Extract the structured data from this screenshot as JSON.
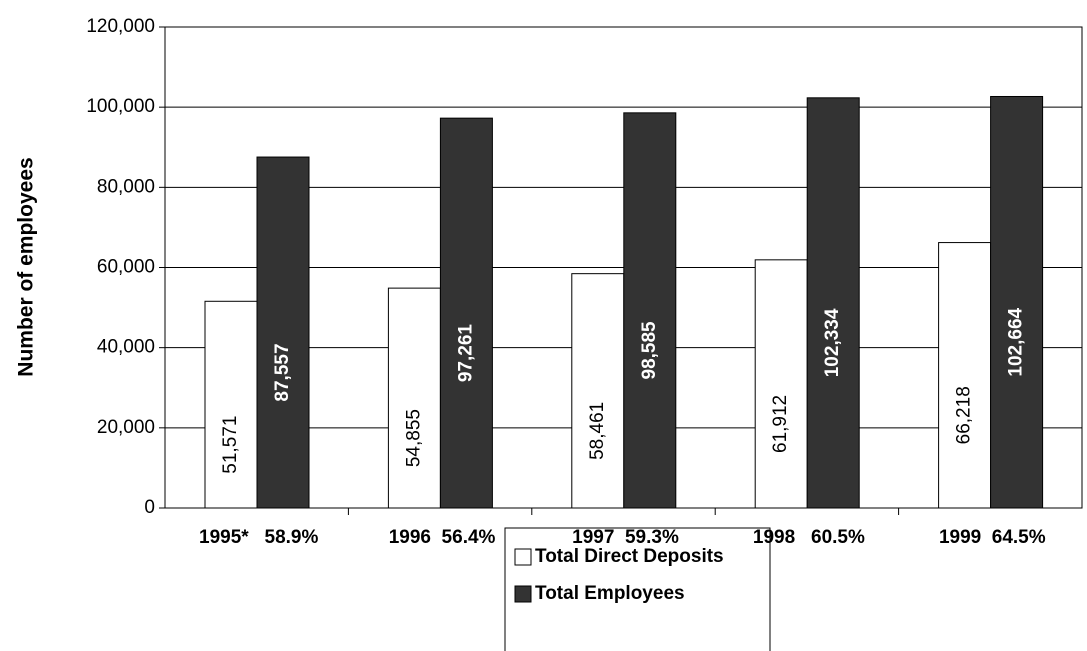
{
  "chart_data": {
    "type": "bar",
    "y_label": "Number of employees",
    "categories": [
      "1995*   58.9%",
      "1996  56.4%",
      "1997  59.3%",
      "1998   60.5%",
      "1999  64.5%"
    ],
    "series": [
      {
        "name": "Total Direct Deposits",
        "color": "#ffffff",
        "values": [
          51571,
          54855,
          58461,
          61912,
          66218
        ],
        "value_labels": [
          "51,571",
          "54,855",
          "58,461",
          "61,912",
          "66,218"
        ]
      },
      {
        "name": "Total Employees",
        "color": "#333333",
        "values": [
          87557,
          97261,
          98585,
          102334,
          102664
        ],
        "value_labels": [
          "87,557",
          "97,261",
          "98,585",
          "102,334",
          "102,664"
        ]
      }
    ],
    "ylim": [
      0,
      120000
    ],
    "yticks": [
      0,
      {
        "value": 20000,
        "label": "20,000"
      },
      {
        "value": 40000,
        "label": "40,000"
      },
      {
        "value": 60000,
        "label": "60,000"
      },
      {
        "value": 80000,
        "label": "80,000"
      },
      {
        "value": 100000,
        "label": "100,000"
      },
      {
        "value": 120000,
        "label": "120,000"
      }
    ],
    "grid": true,
    "legend": "bottom"
  }
}
